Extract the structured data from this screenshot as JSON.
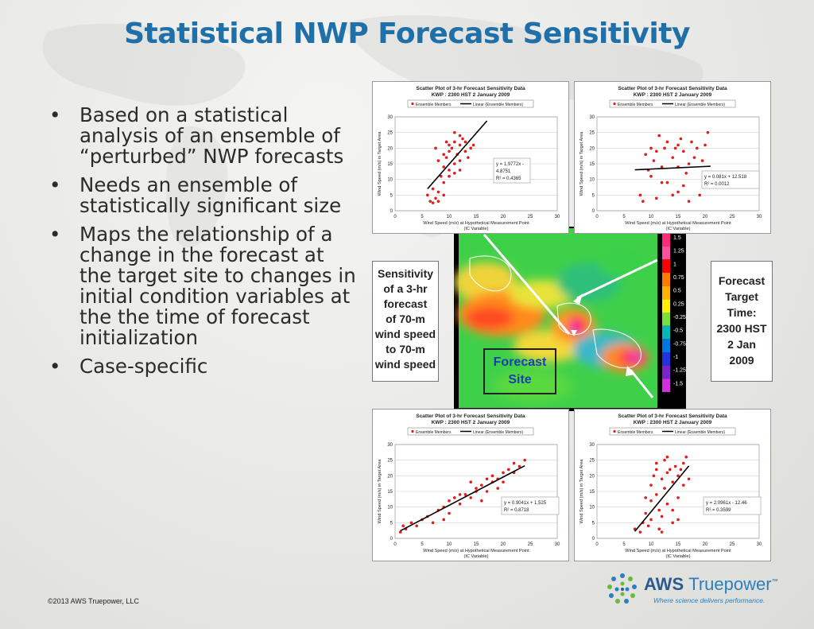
{
  "slide": {
    "title": "Statistical NWP Forecast Sensitivity",
    "bullets": [
      "Based on a statistical analysis of an ensemble of “perturbed” NWP forecasts",
      "Needs an ensemble of statistically significant size",
      "Maps the relationship of a change in the forecast at the target site to changes in initial condition variables at the the time of forecast initialization",
      "Case-specific"
    ],
    "bullet_glyph": "•",
    "footer": "©2013 AWS Truepower, LLC",
    "logo": {
      "name_bold": "AWS ",
      "name_light": "Truepower",
      "trademark": "™",
      "tagline": "Where science delivers performance."
    }
  },
  "figure": {
    "left_label": [
      "Sensitivity",
      "of a 3-hr",
      "forecast",
      "of 70-m",
      "wind speed",
      "to 70-m",
      "wind speed"
    ],
    "right_label": [
      "Forecast",
      "Target",
      "Time:",
      "2300 HST",
      "2 Jan",
      "2009"
    ],
    "site_label": [
      "Forecast",
      "Site"
    ],
    "colorbar_ticks": [
      "1.5",
      "1.25",
      "1",
      "0.75",
      "0.5",
      "0.25",
      "-0.25",
      "-0.5",
      "-0.75",
      "-1",
      "-1.25",
      "-1.5"
    ],
    "colorbar_colors": [
      "#ff2a7a",
      "#ff4fa0",
      "#ff0000",
      "#ff7a00",
      "#ffb000",
      "#ffee00",
      "#7adf3a",
      "#00b8b8",
      "#0077e0",
      "#2233dd",
      "#7a22cc",
      "#d030e0"
    ]
  },
  "chart_data": [
    {
      "type": "scatter",
      "title": "Scatter Plot of 3-hr Forecast Sensitivity Data",
      "subtitle": "KWP : 2300 HST 2 January 2009",
      "legend": [
        "Ensemble Members",
        "Linear (Ensemble Members)"
      ],
      "xlabel": "Wind Speed (m/s) at Hypothetical Measurement Point",
      "xlabel2": "(IC Variable)",
      "ylabel": "Wind Speed (m/s) in Target Area",
      "xlim": [
        0,
        30
      ],
      "ylim": [
        0,
        30
      ],
      "xticks": [
        "0",
        "5",
        "10",
        "15",
        "20",
        "25",
        "30"
      ],
      "yticks": [
        "0",
        "5",
        "10",
        "15",
        "20",
        "25",
        "30"
      ],
      "equation": [
        "y = 1.9772x -",
        "4.8751",
        "R² = 0.4365"
      ],
      "trend": {
        "slope": 1.9772,
        "intercept": -4.8751,
        "x_range": [
          6,
          17
        ]
      },
      "points": [
        [
          6,
          5
        ],
        [
          6.5,
          3
        ],
        [
          7,
          2.5
        ],
        [
          7.5,
          4
        ],
        [
          8,
          3
        ],
        [
          8,
          6
        ],
        [
          7,
          7
        ],
        [
          9,
          5
        ],
        [
          9,
          9
        ],
        [
          8.5,
          11
        ],
        [
          9,
          14
        ],
        [
          9.5,
          17
        ],
        [
          10,
          13
        ],
        [
          10,
          19
        ],
        [
          10.5,
          20
        ],
        [
          11,
          15
        ],
        [
          11,
          22
        ],
        [
          11.5,
          18
        ],
        [
          12,
          21
        ],
        [
          12,
          16
        ],
        [
          12.5,
          23
        ],
        [
          13,
          19
        ],
        [
          13,
          22
        ],
        [
          11,
          25
        ],
        [
          14,
          20
        ],
        [
          14.5,
          21
        ],
        [
          12,
          13
        ],
        [
          10,
          11
        ],
        [
          9,
          18
        ],
        [
          13.5,
          17
        ],
        [
          8,
          16
        ],
        [
          10,
          21
        ],
        [
          11,
          12
        ],
        [
          12,
          24
        ],
        [
          7.5,
          20
        ],
        [
          9.5,
          22
        ]
      ]
    },
    {
      "type": "scatter",
      "title": "Scatter Plot of 3-hr Forecast Sensitivity Data",
      "subtitle": "KWP : 2300 HST 2 January 2009",
      "legend": [
        "Ensemble Members",
        "Linear (Ensemble Members)"
      ],
      "xlabel": "Wind Speed (m/s) at Hypothetical Measurement Point",
      "xlabel2": "(IC Variable)",
      "ylabel": "Wind Speed (m/s) in Target Area",
      "xlim": [
        0,
        30
      ],
      "ylim": [
        0,
        30
      ],
      "xticks": [
        "0",
        "5",
        "10",
        "15",
        "20",
        "25",
        "30"
      ],
      "yticks": [
        "0",
        "5",
        "10",
        "15",
        "20",
        "25",
        "30"
      ],
      "equation": [
        "y = 0.081x + 12.518",
        "R² = 0.0012"
      ],
      "trend": {
        "slope": 0.081,
        "intercept": 12.518,
        "x_range": [
          7,
          21
        ]
      },
      "points": [
        [
          8,
          5
        ],
        [
          8.5,
          3
        ],
        [
          9,
          18
        ],
        [
          10,
          20
        ],
        [
          10.5,
          16
        ],
        [
          11,
          19
        ],
        [
          11,
          4
        ],
        [
          12,
          14
        ],
        [
          12.5,
          20
        ],
        [
          13,
          22
        ],
        [
          13,
          9
        ],
        [
          14,
          5
        ],
        [
          14,
          17
        ],
        [
          14.5,
          20
        ],
        [
          15,
          21
        ],
        [
          15,
          14
        ],
        [
          15.5,
          23
        ],
        [
          16,
          19
        ],
        [
          16,
          8
        ],
        [
          16.5,
          12
        ],
        [
          17,
          3
        ],
        [
          17.5,
          22
        ],
        [
          18,
          17
        ],
        [
          18.5,
          20
        ],
        [
          19,
          5
        ],
        [
          19.5,
          16
        ],
        [
          20,
          21
        ],
        [
          20,
          8
        ],
        [
          20.5,
          25
        ],
        [
          21,
          12
        ],
        [
          12,
          9
        ],
        [
          11.5,
          24
        ],
        [
          10,
          11
        ],
        [
          15,
          6
        ],
        [
          17,
          15
        ],
        [
          9.5,
          13
        ]
      ]
    },
    {
      "type": "scatter",
      "title": "Scatter Plot of 3-hr Forecast Sensitivity Data",
      "subtitle": "KWP : 2300 HST 2 January 2009",
      "legend": [
        "Ensemble Members",
        "Linear (Ensemble Members)"
      ],
      "xlabel": "Wind Speed (m/s) at Hypothetical Measurement Point",
      "xlabel2": "(IC Variable)",
      "ylabel": "Wind Speed (m/s) in Target Area",
      "xlim": [
        0,
        30
      ],
      "ylim": [
        0,
        30
      ],
      "xticks": [
        "0",
        "5",
        "10",
        "15",
        "20",
        "25",
        "30"
      ],
      "yticks": [
        "0",
        "5",
        "10",
        "15",
        "20",
        "25",
        "30"
      ],
      "equation": [
        "y = 0.9041x + 1.525",
        "R² = 0.8718"
      ],
      "trend": {
        "slope": 0.9041,
        "intercept": 1.525,
        "x_range": [
          1,
          24
        ]
      },
      "points": [
        [
          1,
          2
        ],
        [
          1.5,
          4
        ],
        [
          2,
          3
        ],
        [
          3,
          5
        ],
        [
          4,
          4
        ],
        [
          5,
          6
        ],
        [
          6,
          7
        ],
        [
          7,
          5
        ],
        [
          8,
          9
        ],
        [
          9,
          10
        ],
        [
          10,
          8
        ],
        [
          10,
          12
        ],
        [
          11,
          13
        ],
        [
          12,
          11
        ],
        [
          12,
          14
        ],
        [
          13,
          14
        ],
        [
          14,
          13
        ],
        [
          15,
          15
        ],
        [
          15,
          16
        ],
        [
          16,
          17
        ],
        [
          17,
          15
        ],
        [
          17,
          19
        ],
        [
          18,
          18
        ],
        [
          18,
          20
        ],
        [
          19,
          19
        ],
        [
          20,
          21
        ],
        [
          20,
          18
        ],
        [
          21,
          22
        ],
        [
          22,
          21
        ],
        [
          23,
          23
        ],
        [
          24,
          25
        ],
        [
          16,
          12
        ],
        [
          14,
          18
        ],
        [
          19,
          16
        ],
        [
          22,
          24
        ],
        [
          9,
          6
        ]
      ]
    },
    {
      "type": "scatter",
      "title": "Scatter Plot of 3-hr Forecast Sensitivity Data",
      "subtitle": "KWP : 2300 HST 2 January 2009",
      "legend": [
        "Ensemble Members",
        "Linear (Ensemble Members)"
      ],
      "xlabel": "Wind Speed (m/s) at Hypothetical Measurement Point",
      "xlabel2": "(IC Variable)",
      "ylabel": "Wind Speed (m/s) in Target Area",
      "xlim": [
        0,
        30
      ],
      "ylim": [
        0,
        30
      ],
      "xticks": [
        "0",
        "5",
        "10",
        "15",
        "20",
        "25",
        "30"
      ],
      "yticks": [
        "0",
        "5",
        "10",
        "15",
        "20",
        "25",
        "30"
      ],
      "equation": [
        "y = 2.0961x - 12.46",
        "R² = 0.3599"
      ],
      "trend": {
        "slope": 2.0961,
        "intercept": -12.46,
        "x_range": [
          7,
          17
        ]
      },
      "points": [
        [
          7,
          3
        ],
        [
          8,
          2
        ],
        [
          8.5,
          5
        ],
        [
          9,
          8
        ],
        [
          9.5,
          4
        ],
        [
          10,
          12
        ],
        [
          10,
          17
        ],
        [
          10.5,
          20
        ],
        [
          11,
          22
        ],
        [
          11,
          14
        ],
        [
          11.5,
          9
        ],
        [
          12,
          19
        ],
        [
          12,
          2
        ],
        [
          12.5,
          16
        ],
        [
          13,
          21
        ],
        [
          13,
          11
        ],
        [
          13.5,
          22
        ],
        [
          14,
          18
        ],
        [
          14,
          5
        ],
        [
          14.5,
          23
        ],
        [
          15,
          20
        ],
        [
          15,
          13
        ],
        [
          15.5,
          22
        ],
        [
          16,
          17
        ],
        [
          16.5,
          26
        ],
        [
          17,
          19
        ],
        [
          11,
          24
        ],
        [
          12,
          7
        ],
        [
          13,
          26
        ],
        [
          10,
          6
        ],
        [
          9,
          13
        ],
        [
          14,
          9
        ],
        [
          16,
          24
        ],
        [
          11.5,
          3
        ],
        [
          12.5,
          25
        ],
        [
          15,
          6
        ]
      ]
    }
  ]
}
